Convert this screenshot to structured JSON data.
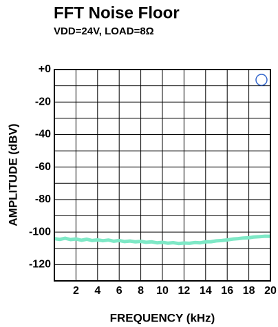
{
  "chart_data": {
    "type": "line",
    "title": "FFT Noise Floor",
    "subtitle": "VDD=24V, LOAD=8Ω",
    "xlabel": "FREQUENCY (kHz)",
    "ylabel": "AMPLITUDE (dBV)",
    "xlim": [
      0,
      20
    ],
    "xticks": [
      2,
      4,
      6,
      8,
      10,
      12,
      14,
      16,
      18,
      20
    ],
    "ylim": [
      -130,
      0
    ],
    "yticks": [
      {
        "value": 0,
        "label": "+0"
      },
      -20,
      -40,
      -60,
      -80,
      -100,
      -120
    ],
    "y_minor_ticks": [
      -10,
      -30,
      -50,
      -70,
      -90,
      -110
    ],
    "grid": true,
    "series": [
      {
        "color": "#7ee8c6",
        "x": [
          0,
          0.5,
          1,
          1.5,
          2,
          2.5,
          3,
          3.5,
          4,
          4.5,
          5,
          5.5,
          6,
          6.5,
          7,
          7.5,
          8,
          8.5,
          9,
          9.5,
          10,
          10.5,
          11,
          11.5,
          12,
          12.5,
          13,
          13.5,
          14,
          14.5,
          15,
          15.5,
          16,
          16.5,
          17,
          17.5,
          18,
          18.5,
          19,
          19.5,
          20
        ],
        "values": [
          -104,
          -104.5,
          -103.8,
          -104.6,
          -104.2,
          -105,
          -104.4,
          -105.2,
          -104.8,
          -105.3,
          -104.9,
          -105.6,
          -105.2,
          -105.8,
          -105.5,
          -106,
          -105.7,
          -106.3,
          -106,
          -106.6,
          -106.3,
          -106.8,
          -106.5,
          -107,
          -106.7,
          -106.9,
          -106.4,
          -106.6,
          -106,
          -105.9,
          -105.4,
          -105.2,
          -104.8,
          -104.3,
          -104,
          -103.6,
          -103.5,
          -103,
          -102.8,
          -102.5,
          -102.6
        ]
      }
    ]
  }
}
